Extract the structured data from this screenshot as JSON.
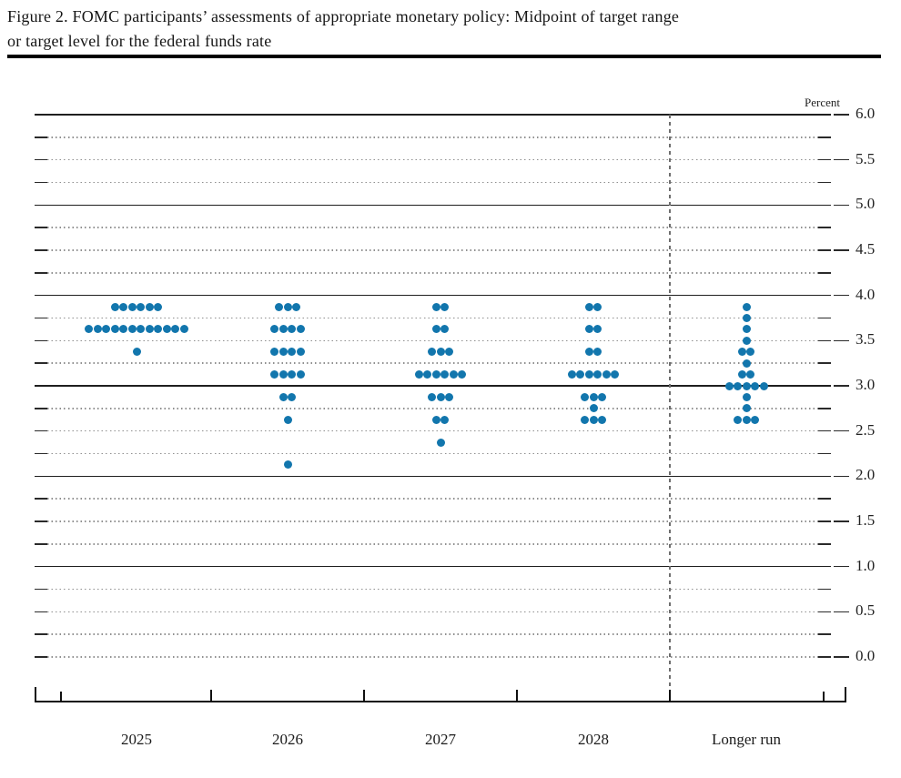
{
  "title": "Figure 2. FOMC participants’ assessments of appropriate monetary policy: Midpoint of target range or target level for the federal funds rate",
  "title_lines": [
    "Figure 2. FOMC participants’ assessments of appropriate monetary policy: Midpoint of target range",
    "or target level for the federal funds rate"
  ],
  "chart_data": {
    "type": "scatter",
    "subtype": "fomc-dot-plot",
    "title": "Figure 2. FOMC participants’ assessments of appropriate monetary policy: Midpoint of target range or target level for the federal funds rate",
    "ylabel": "Percent",
    "xlabel": "",
    "y_axis": {
      "min": 0.0,
      "max": 6.0,
      "label_step": 0.5,
      "grid_step": 0.25,
      "tick_labels": [
        "6.0",
        "5.5",
        "5.0",
        "4.5",
        "4.0",
        "3.5",
        "3.0",
        "2.5",
        "2.0",
        "1.5",
        "1.0",
        "0.5",
        "0.0"
      ]
    },
    "categories": [
      "2025",
      "2026",
      "2027",
      "2028",
      "Longer run"
    ],
    "separator_between": [
      "2028",
      "Longer run"
    ],
    "participants_per_column": 19,
    "series": [
      {
        "category": "2025",
        "dots": [
          {
            "rate": 3.875,
            "count": 6
          },
          {
            "rate": 3.625,
            "count": 12
          },
          {
            "rate": 3.375,
            "count": 1
          }
        ]
      },
      {
        "category": "2026",
        "dots": [
          {
            "rate": 3.875,
            "count": 3
          },
          {
            "rate": 3.625,
            "count": 4
          },
          {
            "rate": 3.375,
            "count": 4
          },
          {
            "rate": 3.125,
            "count": 4
          },
          {
            "rate": 2.875,
            "count": 2
          },
          {
            "rate": 2.625,
            "count": 1
          },
          {
            "rate": 2.125,
            "count": 1
          }
        ]
      },
      {
        "category": "2027",
        "dots": [
          {
            "rate": 3.875,
            "count": 2
          },
          {
            "rate": 3.625,
            "count": 2
          },
          {
            "rate": 3.375,
            "count": 3
          },
          {
            "rate": 3.125,
            "count": 6
          },
          {
            "rate": 2.875,
            "count": 3
          },
          {
            "rate": 2.625,
            "count": 2
          },
          {
            "rate": 2.375,
            "count": 1
          }
        ]
      },
      {
        "category": "2028",
        "dots": [
          {
            "rate": 3.875,
            "count": 2
          },
          {
            "rate": 3.625,
            "count": 2
          },
          {
            "rate": 3.375,
            "count": 2
          },
          {
            "rate": 3.125,
            "count": 6
          },
          {
            "rate": 2.875,
            "count": 3
          },
          {
            "rate": 2.75,
            "count": 1
          },
          {
            "rate": 2.625,
            "count": 3
          }
        ]
      },
      {
        "category": "Longer run",
        "dots": [
          {
            "rate": 3.875,
            "count": 1
          },
          {
            "rate": 3.75,
            "count": 1
          },
          {
            "rate": 3.625,
            "count": 1
          },
          {
            "rate": 3.5,
            "count": 1
          },
          {
            "rate": 3.375,
            "count": 2
          },
          {
            "rate": 3.25,
            "count": 1
          },
          {
            "rate": 3.125,
            "count": 2
          },
          {
            "rate": 3.0,
            "count": 5
          },
          {
            "rate": 2.875,
            "count": 1
          },
          {
            "rate": 2.75,
            "count": 1
          },
          {
            "rate": 2.625,
            "count": 3
          }
        ]
      }
    ],
    "colors": {
      "dot": "#1276ad",
      "grid_major": "#1f1f1f",
      "grid_minor": "#8f8f8f",
      "separator": "#6e6e6e"
    },
    "legend_position": "none",
    "grid": true
  }
}
